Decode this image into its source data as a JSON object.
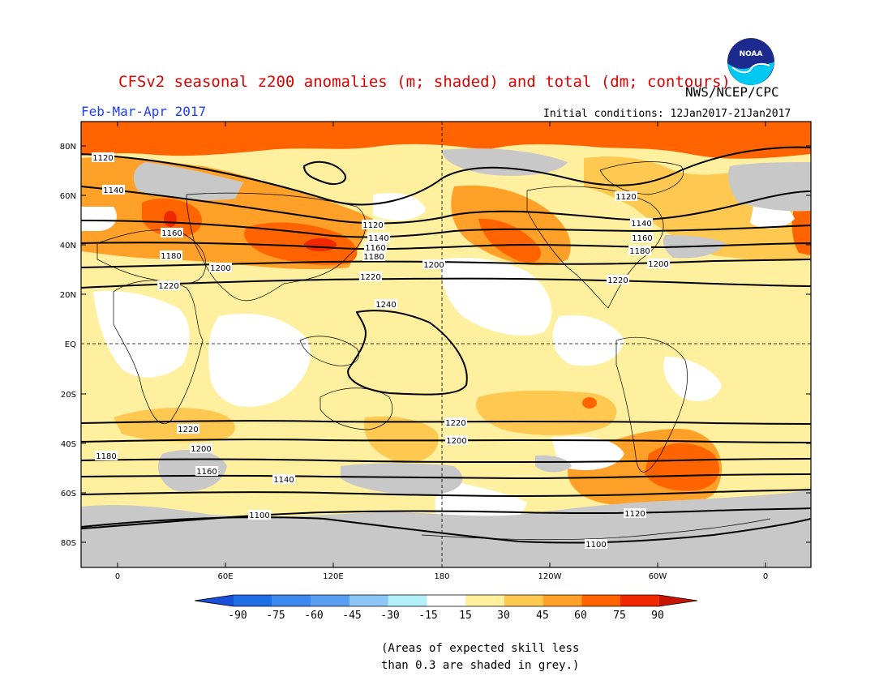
{
  "header": {
    "title": "CFSv2 seasonal z200 anomalies (m; shaded) and total (dm; contours)",
    "period": "Feb-Mar-Apr 2017",
    "initial_conditions": "Initial conditions: 12Jan2017-21Jan2017",
    "agency": "NWS/NCEP/CPC",
    "logo_text": "NOAA"
  },
  "map": {
    "lat_labels": [
      "80N",
      "60N",
      "40N",
      "20N",
      "EQ",
      "20S",
      "40S",
      "60S",
      "80S"
    ],
    "lon_labels": [
      "0",
      "60E",
      "120E",
      "180",
      "120W",
      "60W",
      "0"
    ],
    "contour_labels": [
      "1100",
      "1100",
      "1120",
      "1120",
      "1120",
      "1120",
      "1140",
      "1140",
      "1140",
      "1140",
      "1160",
      "1160",
      "1160",
      "1160",
      "1180",
      "1180",
      "1180",
      "1180",
      "1200",
      "1200",
      "1200",
      "1200",
      "1200",
      "1220",
      "1220",
      "1220",
      "1220",
      "1220",
      "1240"
    ]
  },
  "colorbar": {
    "ticks": [
      "-90",
      "-75",
      "-60",
      "-45",
      "-30",
      "-15",
      "15",
      "30",
      "45",
      "60",
      "75",
      "90"
    ],
    "colors": {
      "neg_end": "#1a50d8",
      "neg90": "#1e6ee6",
      "neg75": "#3c8af0",
      "neg60": "#5aa0f0",
      "neg45": "#8cc6f6",
      "neg30": "#b4f0fa",
      "white": "#ffffff",
      "pos15": "#fff0a0",
      "pos30": "#ffc850",
      "pos45": "#ffa028",
      "pos60": "#ff6400",
      "pos75": "#f02800",
      "pos90": "#c81400",
      "skill_grey": "#c8c8c8"
    }
  },
  "footnote": {
    "line1": "(Areas of expected skill less",
    "line2": "than 0.3 are shaded in grey.)"
  }
}
